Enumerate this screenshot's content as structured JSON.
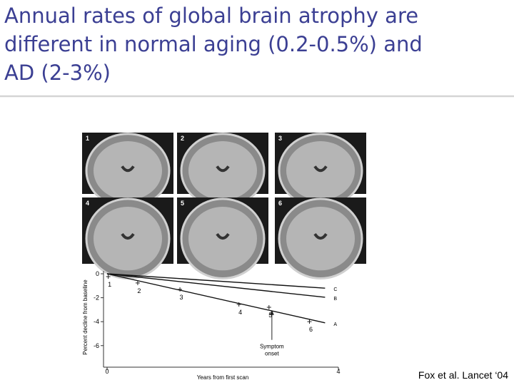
{
  "title_lines": [
    "Annual rates of global brain atrophy are",
    "different in normal aging (0.2-0.5%) and",
    "AD (2-3%)"
  ],
  "panels": [
    "1",
    "2",
    "3",
    "4",
    "5",
    "6"
  ],
  "citation": "Fox et al. Lancet ‘04",
  "chart_data": {
    "type": "line",
    "x_label": "Years from first scan",
    "y_label": "Percent decline from baseline",
    "xlim": [
      0,
      4
    ],
    "xticks": [
      0,
      4
    ],
    "ylim": [
      -7.8,
      0
    ],
    "yticks": [
      0,
      -2,
      -4,
      -6
    ],
    "series": [
      {
        "name": "C",
        "color": "#111111",
        "x": [
          0,
          3.77
        ],
        "values": [
          0,
          -1.2
        ]
      },
      {
        "name": "B",
        "color": "#111111",
        "x": [
          0,
          3.77
        ],
        "values": [
          0,
          -1.96
        ]
      },
      {
        "name": "A",
        "color": "#111111",
        "x": [
          0,
          3.77
        ],
        "values": [
          0,
          -4.1
        ]
      }
    ],
    "scans": {
      "x": [
        0.02,
        0.53,
        1.26,
        2.28,
        2.8,
        3.5
      ],
      "values": [
        -0.24,
        -0.77,
        -1.3,
        -2.56,
        -2.8,
        -4.0
      ],
      "labels": [
        "1",
        "2",
        "3",
        "4",
        "5",
        "6"
      ]
    },
    "annotation": {
      "lines": [
        "Symptom",
        "onset"
      ],
      "x": 2.85,
      "y": -2.9
    }
  }
}
